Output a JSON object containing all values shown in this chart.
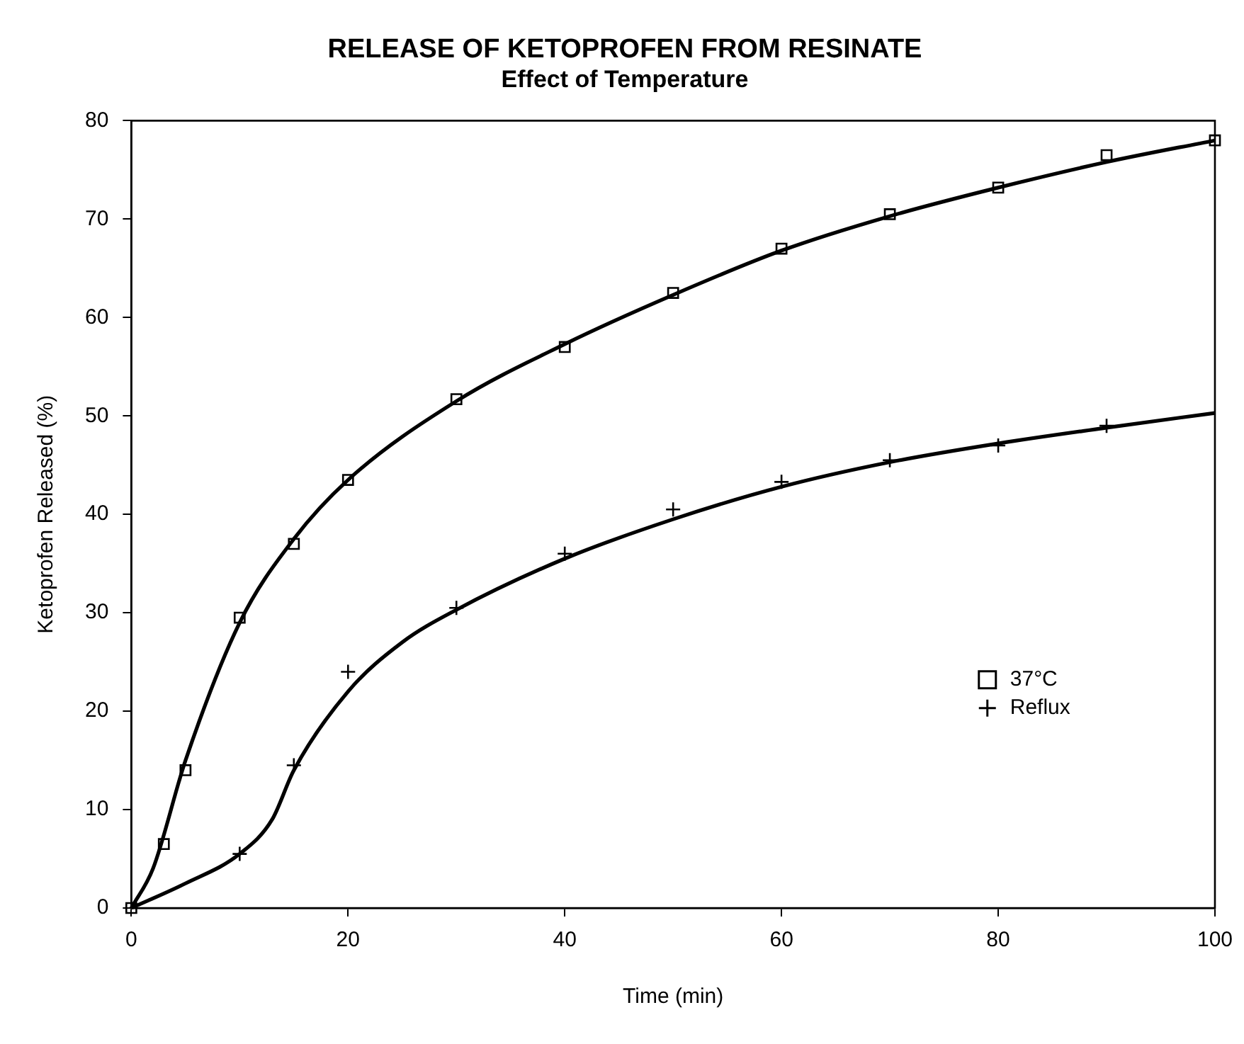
{
  "chart_data": {
    "type": "scatter",
    "title": "RELEASE OF KETOPROFEN FROM RESINATE",
    "subtitle": "Effect of Temperature",
    "xlabel": "Time (min)",
    "ylabel": "Ketoprofen Released (%)",
    "xlim": [
      0,
      100
    ],
    "xticks": [
      0,
      20,
      40,
      60,
      80,
      100
    ],
    "ylim": [
      0,
      80
    ],
    "yticks": [
      0,
      10,
      20,
      30,
      40,
      50,
      60,
      70,
      80
    ],
    "grid": false,
    "legend": "right",
    "series": [
      {
        "name": "37°C",
        "marker": "square",
        "color": "#000000",
        "x": [
          0,
          3,
          5,
          10,
          15,
          20,
          30,
          40,
          50,
          60,
          70,
          80,
          90,
          100
        ],
        "values": [
          0,
          6.5,
          14,
          29.5,
          37,
          43.5,
          51.7,
          57,
          62.5,
          67,
          70.5,
          73.2,
          76.5,
          78
        ]
      },
      {
        "name": "Reflux",
        "marker": "cross",
        "color": "#000000",
        "x": [
          10,
          15,
          20,
          30,
          40,
          50,
          60,
          70,
          80,
          90
        ],
        "values": [
          5.5,
          14.5,
          24,
          30.5,
          36,
          40.5,
          43.3,
          45.5,
          47,
          49
        ]
      },
      {
        "type": "line",
        "marker": "none",
        "color": "#000000",
        "x": [
          0,
          2,
          5,
          10,
          15,
          20,
          30,
          40,
          50,
          60,
          70,
          80,
          90,
          100
        ],
        "values": [
          0,
          4,
          15,
          29,
          37.5,
          43.5,
          51.5,
          57.3,
          62.3,
          66.8,
          70.3,
          73.2,
          75.8,
          78
        ]
      },
      {
        "type": "line",
        "marker": "none",
        "color": "#000000",
        "x": [
          0,
          5,
          10,
          13,
          15,
          20,
          25,
          30,
          40,
          50,
          60,
          70,
          80,
          90,
          100
        ],
        "values": [
          0,
          2.5,
          5.5,
          9,
          14,
          22,
          27,
          30.3,
          35.5,
          39.5,
          42.8,
          45.3,
          47.2,
          48.8,
          50.3
        ]
      }
    ]
  }
}
